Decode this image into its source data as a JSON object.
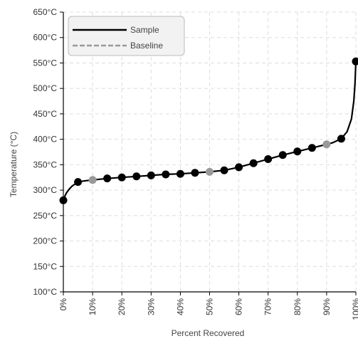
{
  "chart_data": {
    "type": "line",
    "title": "",
    "xlabel": "Percent Recovered",
    "ylabel": "Temperature (°C)",
    "xlim": [
      0,
      100
    ],
    "ylim": [
      100,
      650
    ],
    "x_ticks": [
      "0%",
      "10%",
      "20%",
      "30%",
      "40%",
      "50%",
      "60%",
      "70%",
      "80%",
      "90%",
      "100%"
    ],
    "y_ticks": [
      "100°C",
      "150°C",
      "200°C",
      "250°C",
      "300°C",
      "350°C",
      "400°C",
      "450°C",
      "500°C",
      "550°C",
      "600°C",
      "650°C"
    ],
    "grid": true,
    "legend_position": "top-left",
    "series": [
      {
        "name": "Sample",
        "color": "#000000",
        "style": "solid",
        "curve": [
          [
            0,
            280
          ],
          [
            0.5,
            288
          ],
          [
            1,
            294
          ],
          [
            2,
            302
          ],
          [
            3,
            308
          ],
          [
            4,
            312
          ],
          [
            5,
            316
          ],
          [
            7,
            318
          ],
          [
            10,
            320
          ],
          [
            15,
            323
          ],
          [
            20,
            325
          ],
          [
            25,
            327
          ],
          [
            30,
            329
          ],
          [
            35,
            331
          ],
          [
            40,
            332
          ],
          [
            45,
            334
          ],
          [
            50,
            336
          ],
          [
            55,
            339
          ],
          [
            60,
            345
          ],
          [
            65,
            353
          ],
          [
            70,
            361
          ],
          [
            75,
            369
          ],
          [
            80,
            376
          ],
          [
            85,
            383
          ],
          [
            90,
            390
          ],
          [
            92,
            393
          ],
          [
            95,
            401
          ],
          [
            97,
            415
          ],
          [
            98.5,
            440
          ],
          [
            99.3,
            475
          ],
          [
            99.7,
            510
          ],
          [
            100,
            553
          ]
        ],
        "points": [
          [
            0,
            280
          ],
          [
            5,
            316
          ],
          [
            15,
            323
          ],
          [
            20,
            325
          ],
          [
            25,
            327
          ],
          [
            30,
            329
          ],
          [
            35,
            331
          ],
          [
            40,
            332
          ],
          [
            45,
            334
          ],
          [
            55,
            339
          ],
          [
            60,
            345
          ],
          [
            65,
            353
          ],
          [
            70,
            361
          ],
          [
            75,
            369
          ],
          [
            80,
            376
          ],
          [
            85,
            383
          ],
          [
            95,
            401
          ],
          [
            100,
            553
          ]
        ]
      },
      {
        "name": "Baseline",
        "color": "#999999",
        "style": "dashed",
        "points": [
          [
            10,
            320
          ],
          [
            50,
            336
          ],
          [
            90,
            390
          ]
        ]
      }
    ]
  }
}
